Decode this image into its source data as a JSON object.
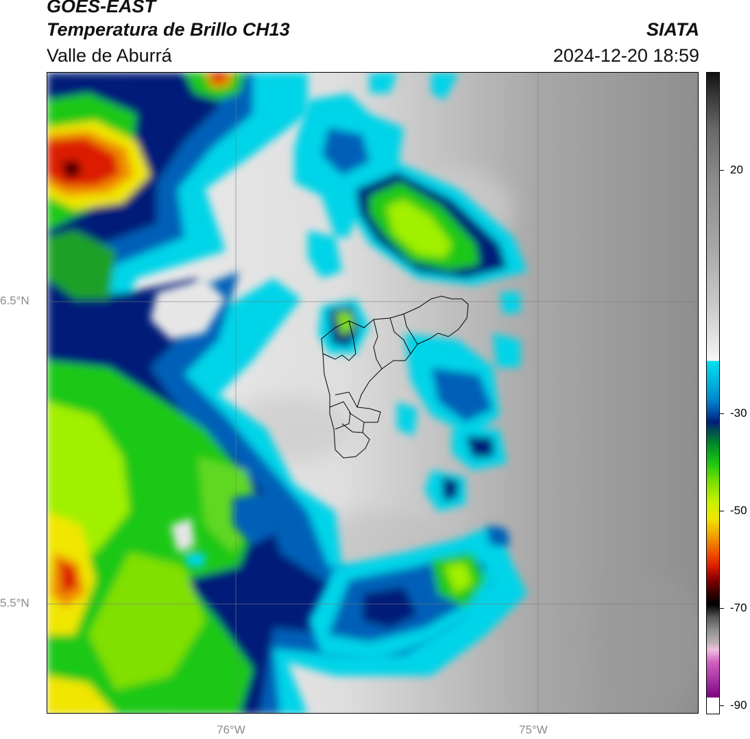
{
  "header": {
    "satellite": "GOES-EAST",
    "product": "Temperatura de Brillo CH13",
    "region": "Valle de Aburrá",
    "organization": "SIATA",
    "datetime": "2024-12-20 18:59"
  },
  "axes": {
    "lat_labels": [
      "6.5°N",
      "5.5°N"
    ],
    "lon_labels": [
      "76°W",
      "75°W"
    ]
  },
  "colorbar": {
    "tick_labels": [
      "20",
      "-30",
      "-50",
      "-70",
      "-90"
    ],
    "colors": {
      "warm_gray": "#8c8c8c",
      "light_gray": "#e6e6e6",
      "cyan": "#00d4e8",
      "blue": "#0050a8",
      "navy": "#001e78",
      "green": "#1ec814",
      "lime": "#a0f000",
      "yellow": "#f0e600",
      "orange": "#f08c00",
      "red": "#dc1e00",
      "dark_red": "#500000",
      "magenta": "#c050c0"
    }
  }
}
